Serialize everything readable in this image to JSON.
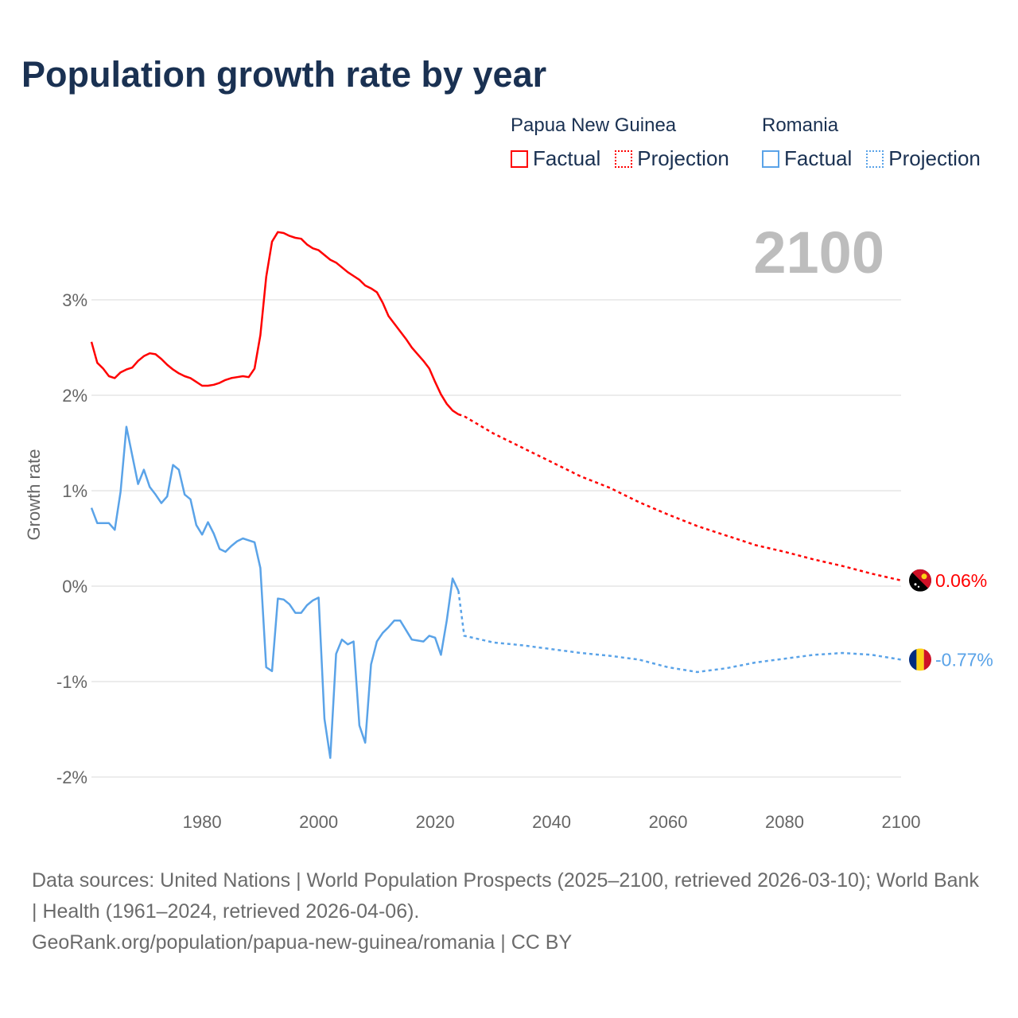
{
  "title": "Population growth rate by year",
  "legend": [
    {
      "group": "Papua New Guinea",
      "factual": "Factual",
      "projection": "Projection",
      "color": "#ff0000"
    },
    {
      "group": "Romania",
      "factual": "Factual",
      "projection": "Projection",
      "color": "#5aa3e8"
    }
  ],
  "current_year": "2100",
  "footer": {
    "sources": "Data sources: United Nations | World Population Prospects (2025–2100, retrieved 2026-03-10); World Bank | Health (1961–2024, retrieved 2026-04-06).",
    "credit": "GeoRank.org/population/papua-new-guinea/romania | CC BY"
  },
  "chart_data": {
    "type": "line",
    "title": "Population growth rate by year",
    "xlabel": "",
    "ylabel": "Growth rate",
    "xlim": [
      1961,
      2100
    ],
    "ylim": [
      -2.3,
      3.8
    ],
    "x_ticks": [
      1980,
      2000,
      2020,
      2040,
      2060,
      2080,
      2100
    ],
    "y_ticks": [
      {
        "value": 3,
        "label": "3%"
      },
      {
        "value": 2,
        "label": "2%"
      },
      {
        "value": 1,
        "label": "1%"
      },
      {
        "value": 0,
        "label": "0%"
      },
      {
        "value": -1,
        "label": "-1%"
      },
      {
        "value": -2,
        "label": "-2%"
      }
    ],
    "grid": true,
    "series": [
      {
        "name": "Papua New Guinea",
        "color": "#ff0000",
        "end_label": "0.06%",
        "factual": {
          "x_start": 1961,
          "values": [
            2.56,
            2.34,
            2.28,
            2.2,
            2.18,
            2.24,
            2.27,
            2.29,
            2.36,
            2.41,
            2.44,
            2.43,
            2.38,
            2.32,
            2.27,
            2.23,
            2.2,
            2.18,
            2.14,
            2.1,
            2.1,
            2.11,
            2.13,
            2.16,
            2.18,
            2.19,
            2.2,
            2.19,
            2.28,
            2.63,
            3.24,
            3.61,
            3.71,
            3.7,
            3.67,
            3.65,
            3.64,
            3.58,
            3.54,
            3.52,
            3.47,
            3.42,
            3.39,
            3.34,
            3.29,
            3.25,
            3.21,
            3.15,
            3.12,
            3.08,
            2.97,
            2.83,
            2.75,
            2.67,
            2.59,
            2.5,
            2.43,
            2.36,
            2.28,
            2.14,
            2.01,
            1.91,
            1.84,
            1.8
          ]
        },
        "projection": {
          "x": [
            2024,
            2025,
            2030,
            2035,
            2040,
            2045,
            2050,
            2055,
            2060,
            2065,
            2070,
            2075,
            2080,
            2085,
            2090,
            2095,
            2100
          ],
          "values": [
            1.8,
            1.78,
            1.6,
            1.45,
            1.3,
            1.15,
            1.03,
            0.88,
            0.75,
            0.63,
            0.53,
            0.43,
            0.36,
            0.28,
            0.21,
            0.13,
            0.06
          ]
        }
      },
      {
        "name": "Romania",
        "color": "#5aa3e8",
        "end_label": "-0.77%",
        "factual": {
          "x_start": 1961,
          "values": [
            0.82,
            0.66,
            0.66,
            0.66,
            0.59,
            0.99,
            1.67,
            1.37,
            1.07,
            1.22,
            1.04,
            0.96,
            0.87,
            0.94,
            1.27,
            1.22,
            0.96,
            0.91,
            0.64,
            0.54,
            0.67,
            0.55,
            0.39,
            0.36,
            0.42,
            0.47,
            0.5,
            0.48,
            0.46,
            0.19,
            -0.85,
            -0.89,
            -0.13,
            -0.14,
            -0.19,
            -0.28,
            -0.28,
            -0.2,
            -0.15,
            -0.12,
            -1.39,
            -1.8,
            -0.71,
            -0.56,
            -0.61,
            -0.58,
            -1.46,
            -1.64,
            -0.82,
            -0.58,
            -0.49,
            -0.43,
            -0.36,
            -0.36,
            -0.46,
            -0.56,
            -0.57,
            -0.58,
            -0.52,
            -0.54,
            -0.72,
            -0.36,
            0.08,
            -0.05
          ]
        },
        "projection": {
          "x": [
            2024,
            2025,
            2030,
            2035,
            2040,
            2045,
            2050,
            2055,
            2060,
            2065,
            2070,
            2075,
            2080,
            2085,
            2090,
            2095,
            2100
          ],
          "values": [
            -0.05,
            -0.52,
            -0.59,
            -0.62,
            -0.66,
            -0.7,
            -0.73,
            -0.77,
            -0.85,
            -0.9,
            -0.86,
            -0.8,
            -0.76,
            -0.72,
            -0.7,
            -0.72,
            -0.77
          ]
        }
      }
    ]
  }
}
